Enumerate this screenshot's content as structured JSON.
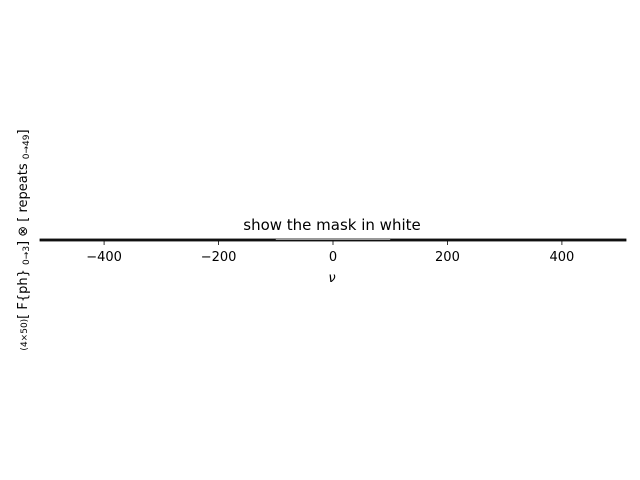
{
  "chart_data": {
    "type": "heatmap",
    "title": "show the mask in white",
    "xlabel": "ν",
    "ylabel_parts": {
      "lead": "(4×50)",
      "main_a": "[ F{ph} ",
      "sub_a": "0→3",
      "main_b": "] ⊗ [ repeats ",
      "sub_b": "0→49",
      "main_c": "]"
    },
    "xlim": [
      -512,
      512
    ],
    "x_ticks": [
      -400,
      -200,
      0,
      200,
      400
    ],
    "x_tick_labels": [
      "−400",
      "−200",
      "0",
      "200",
      "400"
    ],
    "rows": 4,
    "mask_range": [
      -100,
      100
    ],
    "colors": {
      "image": "#1a1a1a",
      "mask": "#ffffff",
      "axis": "#000000"
    }
  }
}
